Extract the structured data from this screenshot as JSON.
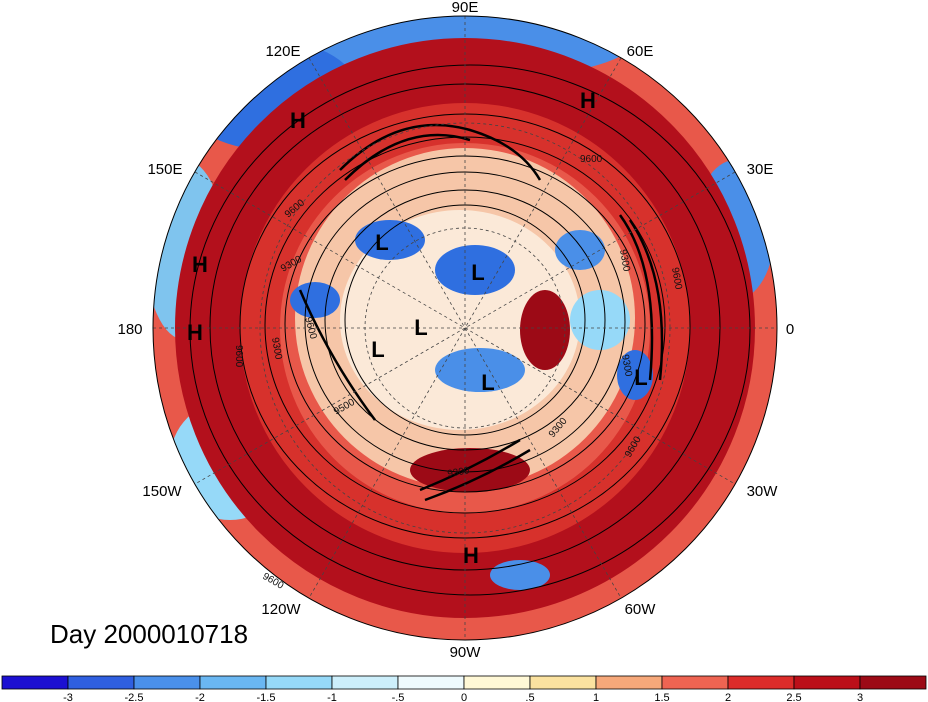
{
  "title": "Day 2000010718",
  "longitude_labels": [
    "90E",
    "60E",
    "30E",
    "0",
    "30W",
    "60W",
    "90W",
    "120W",
    "150W",
    "180",
    "150E",
    "120E"
  ],
  "pressure_systems": [
    "H",
    "H",
    "H",
    "H",
    "H",
    "L",
    "L",
    "L",
    "L",
    "L",
    "L"
  ],
  "contour_labels": [
    "9600",
    "9600",
    "9600",
    "9300",
    "9600",
    "9600",
    "9300",
    "9300",
    "9500",
    "9300",
    "9300",
    "9600",
    "9300",
    "9600"
  ],
  "colorbar": {
    "tick_labels": [
      "-3",
      "-2.5",
      "-2",
      "-1.5",
      "-1",
      "-.5",
      "0",
      ".5",
      "1",
      "1.5",
      "2",
      "2.5",
      "3"
    ],
    "colors": [
      "#1c10d2",
      "#2f5fe0",
      "#4a90ea",
      "#6ab7f2",
      "#96d9f8",
      "#cdeffb",
      "#eefafd",
      "#fff8d6",
      "#fbe2a0",
      "#f6a87a",
      "#ee6452",
      "#dc2c2a",
      "#bb0f19",
      "#9c0a16"
    ]
  },
  "map_colors": {
    "warm_ring": "#b3101c",
    "warm": "#d7312c",
    "neutral": "#fbe9d8",
    "cool": "#7fc4ee",
    "cold": "#2f6fe0"
  }
}
